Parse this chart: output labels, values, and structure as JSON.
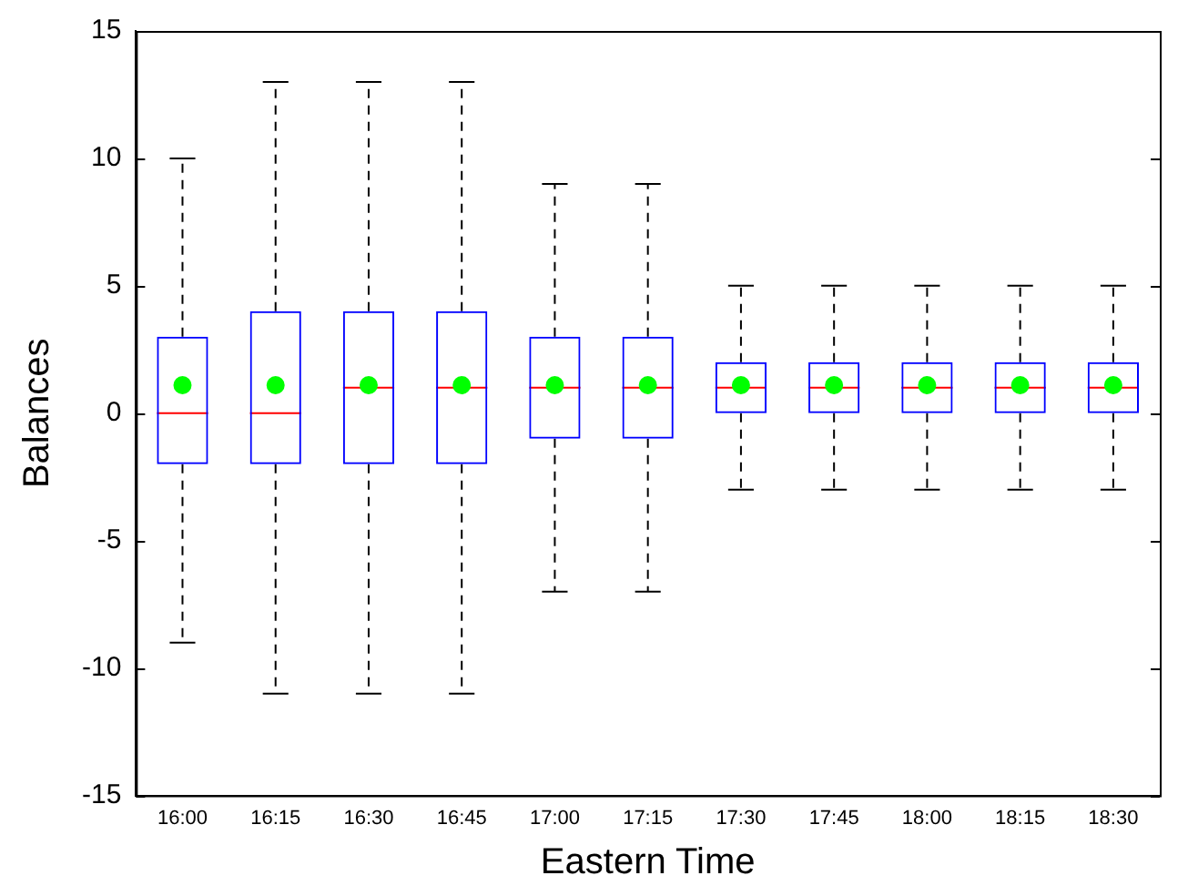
{
  "chart_data": {
    "type": "box",
    "xlabel": "Eastern Time",
    "ylabel": "Balances",
    "categories": [
      "16:00",
      "16:15",
      "16:30",
      "16:45",
      "17:00",
      "17:15",
      "17:30",
      "17:45",
      "18:00",
      "18:15",
      "18:30"
    ],
    "ylim": [
      -15,
      15
    ],
    "yticks": [
      -15,
      -10,
      -5,
      0,
      5,
      10,
      15
    ],
    "grid": false,
    "legend": false,
    "series": [
      {
        "color": "#0000ff",
        "boxes": [
          {
            "low": -9,
            "q1": -2,
            "median": 0,
            "q3": 3,
            "high": 10,
            "mean": 1.1
          },
          {
            "low": -11,
            "q1": -2,
            "median": 0,
            "q3": 4,
            "high": 13,
            "mean": 1.1
          },
          {
            "low": -11,
            "q1": -2,
            "median": 1,
            "q3": 4,
            "high": 13,
            "mean": 1.1
          },
          {
            "low": -11,
            "q1": -2,
            "median": 1,
            "q3": 4,
            "high": 13,
            "mean": 1.1
          },
          {
            "low": -7,
            "q1": -1,
            "median": 1,
            "q3": 3,
            "high": 9,
            "mean": 1.1
          },
          {
            "low": -7,
            "q1": -1,
            "median": 1,
            "q3": 3,
            "high": 9,
            "mean": 1.1
          },
          {
            "low": -3,
            "q1": 0,
            "median": 1,
            "q3": 2,
            "high": 5,
            "mean": 1.1
          },
          {
            "low": -3,
            "q1": 0,
            "median": 1,
            "q3": 2,
            "high": 5,
            "mean": 1.1
          },
          {
            "low": -3,
            "q1": 0,
            "median": 1,
            "q3": 2,
            "high": 5,
            "mean": 1.1
          },
          {
            "low": -3,
            "q1": 0,
            "median": 1,
            "q3": 2,
            "high": 5,
            "mean": 1.1
          },
          {
            "low": -3,
            "q1": 0,
            "median": 1,
            "q3": 2,
            "high": 5,
            "mean": 1.1
          }
        ]
      }
    ]
  }
}
